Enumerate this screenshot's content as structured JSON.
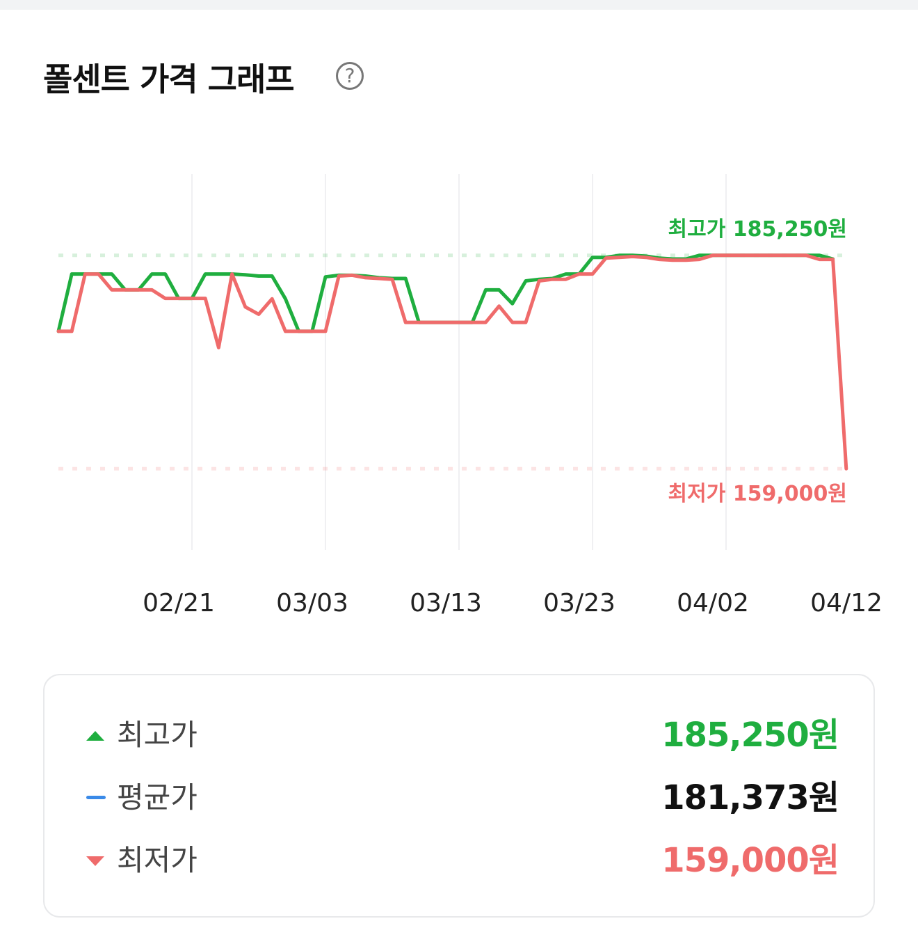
{
  "header": {
    "title": "폴센트 가격 그래프",
    "help_icon": "question-circle-icon"
  },
  "colors": {
    "high": "#1fae3f",
    "low": "#ef6b6b",
    "avg": "#3a8ae8"
  },
  "chart_data": {
    "type": "line",
    "title": "",
    "xlabel": "",
    "ylabel": "",
    "ylim": [
      149000,
      195250
    ],
    "grid": "vertical",
    "x": [
      "02/11",
      "02/12",
      "02/13",
      "02/14",
      "02/15",
      "02/16",
      "02/17",
      "02/18",
      "02/19",
      "02/20",
      "02/21",
      "02/22",
      "02/23",
      "02/24",
      "02/25",
      "02/26",
      "02/27",
      "02/28",
      "03/01",
      "03/02",
      "03/03",
      "03/04",
      "03/05",
      "03/06",
      "03/07",
      "03/08",
      "03/09",
      "03/10",
      "03/11",
      "03/12",
      "03/13",
      "03/14",
      "03/15",
      "03/16",
      "03/17",
      "03/18",
      "03/19",
      "03/20",
      "03/21",
      "03/22",
      "03/23",
      "03/24",
      "03/25",
      "03/26",
      "03/27",
      "03/28",
      "03/29",
      "03/30",
      "03/31",
      "04/01",
      "04/02",
      "04/03",
      "04/04",
      "04/05",
      "04/06",
      "04/07",
      "04/08",
      "04/09",
      "04/10",
      "04/11"
    ],
    "x_ticks": [
      "02/21",
      "03/03",
      "03/13",
      "03/23",
      "04/02",
      "04/12"
    ],
    "series": [
      {
        "key": "high",
        "values": [
          175900,
          182950,
          182950,
          182950,
          182950,
          181000,
          181000,
          182950,
          182950,
          179950,
          179950,
          182950,
          182950,
          182950,
          182850,
          182700,
          182700,
          179900,
          175900,
          175900,
          182600,
          182800,
          182800,
          182700,
          182500,
          182400,
          182400,
          177000,
          177000,
          177000,
          177000,
          177000,
          181000,
          181000,
          179300,
          182100,
          182300,
          182400,
          182950,
          182950,
          185000,
          185000,
          185250,
          185250,
          185150,
          184900,
          184800,
          184800,
          185250,
          185250,
          185250,
          185250,
          185250,
          185250,
          185250,
          185250,
          185250,
          185250,
          184800,
          null
        ]
      },
      {
        "key": "low",
        "values": [
          175900,
          175900,
          182950,
          182950,
          181000,
          181000,
          181000,
          181000,
          179950,
          179950,
          179950,
          179950,
          173900,
          182950,
          178900,
          178000,
          179900,
          175900,
          175900,
          175900,
          175900,
          182700,
          182800,
          182500,
          182400,
          182300,
          177000,
          177000,
          177000,
          177000,
          177000,
          177000,
          177000,
          179000,
          177000,
          177000,
          182100,
          182300,
          182300,
          182950,
          182950,
          184900,
          185000,
          185100,
          185000,
          184750,
          184650,
          184650,
          184750,
          185250,
          185250,
          185250,
          185250,
          185250,
          185250,
          185250,
          185250,
          184750,
          184750,
          159000
        ]
      }
    ],
    "reference_lines": [
      {
        "key": "high",
        "value": 185250,
        "label": "최고가 185,250원"
      },
      {
        "key": "low",
        "value": 159000,
        "label": "최저가 159,000원"
      }
    ]
  },
  "summary": {
    "high": {
      "label": "최고가",
      "value": "185,250원",
      "icon": "triangle-up-icon"
    },
    "avg": {
      "label": "평균가",
      "value": "181,373원",
      "icon": "dash-icon"
    },
    "low": {
      "label": "최저가",
      "value": "159,000원",
      "icon": "triangle-down-icon"
    }
  }
}
